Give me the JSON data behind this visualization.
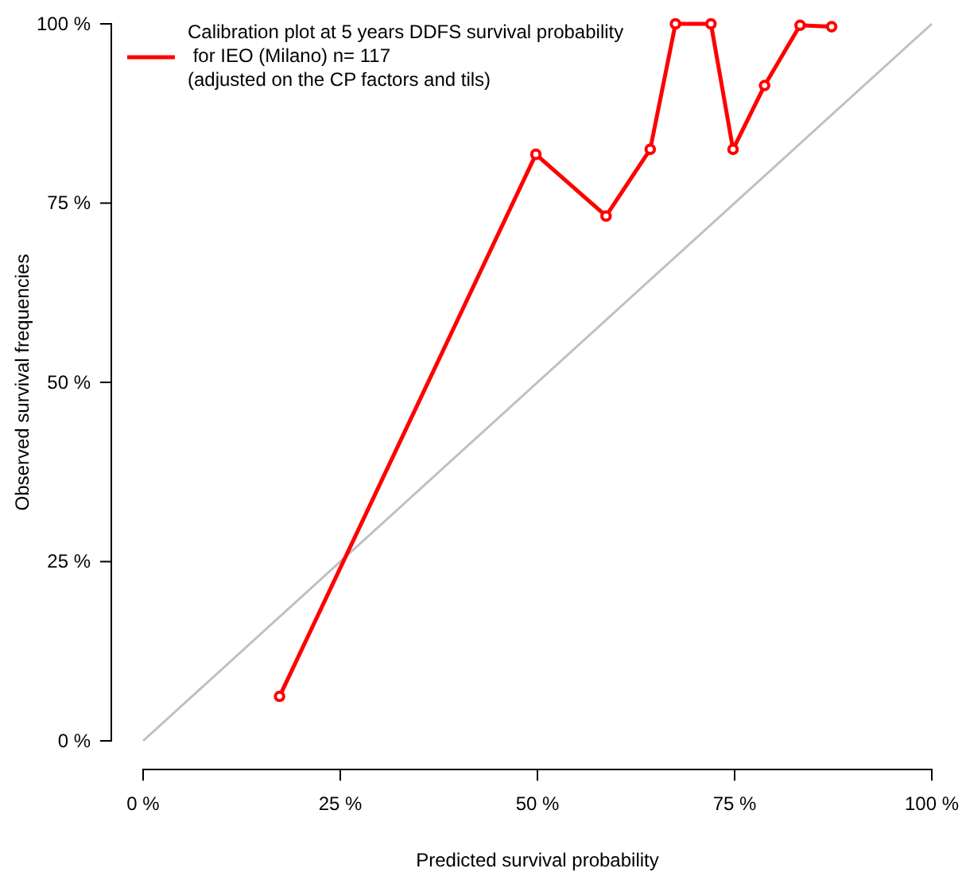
{
  "chart_data": {
    "type": "line",
    "xlabel": "Predicted survival probability",
    "ylabel": "Observed survival frequencies",
    "xlim": [
      0,
      100
    ],
    "ylim": [
      0,
      100
    ],
    "xticks": [
      {
        "value": 0,
        "label": "0 %"
      },
      {
        "value": 25,
        "label": "25 %"
      },
      {
        "value": 50,
        "label": "50 %"
      },
      {
        "value": 75,
        "label": "75 %"
      },
      {
        "value": 100,
        "label": "100 %"
      }
    ],
    "yticks": [
      {
        "value": 0,
        "label": "0 %"
      },
      {
        "value": 25,
        "label": "25 %"
      },
      {
        "value": 50,
        "label": "50 %"
      },
      {
        "value": 75,
        "label": "75 %"
      },
      {
        "value": 100,
        "label": "100 %"
      }
    ],
    "legend": "top left",
    "marker": "circle",
    "line_style": "solid",
    "grid": false,
    "series": [
      {
        "type": "line",
        "x": [
          0,
          100
        ],
        "values": [
          0,
          100
        ],
        "color": "#c0c0c0",
        "marker": "none"
      },
      {
        "name": "Calibration plot at 5 years DDFS survival probability\n for IEO (Milano) n= 117\n(adjusted on the CP factors and tils)",
        "x": [
          17.3,
          49.8,
          58.7,
          64.3,
          67.5,
          72,
          74.8,
          78.8,
          83.3,
          87.3
        ],
        "values": [
          6.2,
          81.8,
          73.2,
          82.5,
          100,
          100,
          82.5,
          91.4,
          99.8,
          99.6
        ],
        "color": "#ff0000"
      }
    ]
  }
}
